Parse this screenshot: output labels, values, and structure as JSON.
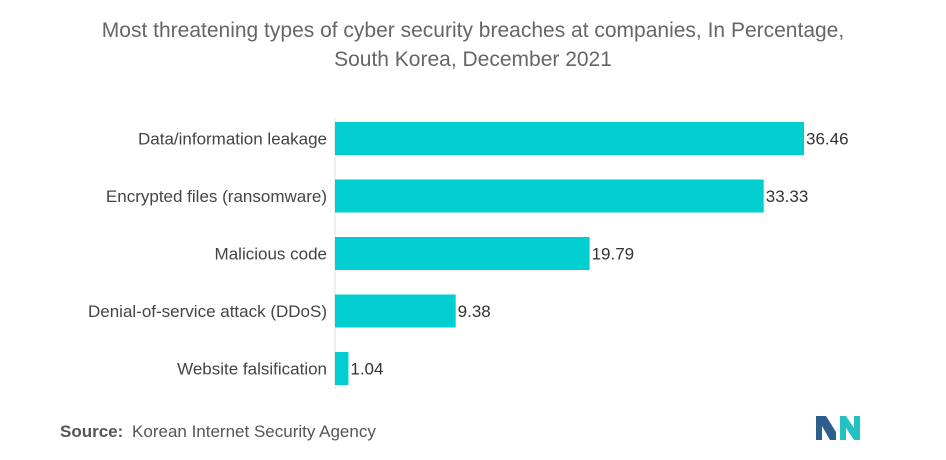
{
  "title": {
    "line1": "Most threatening types of cyber security breaches at companies, In Percentage,",
    "line2": "South Korea, December 2021"
  },
  "source": {
    "label": "Source:",
    "text": "Korean Internet Security Agency"
  },
  "colors": {
    "bar": "#00CED1",
    "logo_dark": "#2E5E8C",
    "logo_light": "#22C1C3"
  },
  "chart_data": {
    "type": "bar",
    "orientation": "horizontal",
    "title": "Most threatening types of cyber security breaches at companies, In Percentage, South Korea, December 2021",
    "categories": [
      "Data/information leakage",
      "Encrypted files (ransomware)",
      "Malicious code",
      "Denial-of-service attack (DDoS)",
      "Website falsification"
    ],
    "values": [
      36.46,
      33.33,
      19.79,
      9.38,
      1.04
    ],
    "data_labels": [
      "36.46",
      "33.33",
      "19.79",
      "9.38",
      "1.04"
    ],
    "xlim": [
      0,
      36.46
    ],
    "grid": false,
    "legend": "none"
  }
}
